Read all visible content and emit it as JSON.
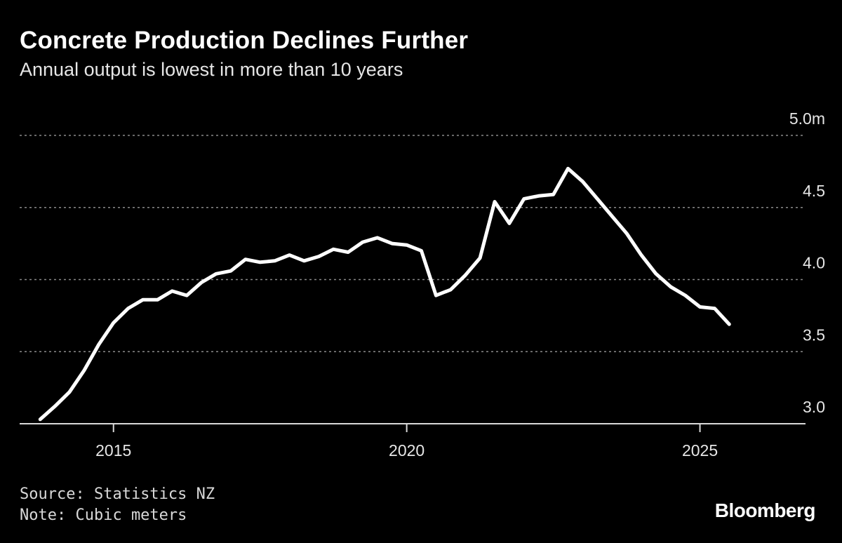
{
  "header": {
    "title": "Concrete Production Declines Further",
    "subtitle": "Annual output is lowest in more than 10 years"
  },
  "footer": {
    "source": "Source: Statistics NZ",
    "note": "Note: Cubic meters",
    "brand": "Bloomberg"
  },
  "colors": {
    "background": "#000000",
    "line": "#ffffff",
    "grid": "#8a8a8a",
    "text": "#ffffff"
  },
  "chart_data": {
    "type": "line",
    "title": "Concrete Production Declines Further",
    "subtitle": "Annual output is lowest in more than 10 years",
    "xlabel": "",
    "ylabel": "",
    "xlim": [
      2013.4,
      2026.8
    ],
    "ylim": [
      3.0,
      5.0
    ],
    "x_ticks": [
      {
        "value": 2015,
        "label": "2015"
      },
      {
        "value": 2020,
        "label": "2020"
      },
      {
        "value": 2025,
        "label": "2025"
      }
    ],
    "y_ticks": [
      {
        "value": 5.0,
        "label": "5.0m"
      },
      {
        "value": 4.5,
        "label": "4.5"
      },
      {
        "value": 4.0,
        "label": "4.0"
      },
      {
        "value": 3.5,
        "label": "3.5"
      },
      {
        "value": 3.0,
        "label": "3.0"
      }
    ],
    "grid": true,
    "y_axis_position": "right",
    "series": [
      {
        "x": [
          2013.75,
          2014.0,
          2014.25,
          2014.5,
          2014.75,
          2015.0,
          2015.25,
          2015.5,
          2015.75,
          2016.0,
          2016.25,
          2016.5,
          2016.75,
          2017.0,
          2017.25,
          2017.5,
          2017.75,
          2018.0,
          2018.25,
          2018.5,
          2018.75,
          2019.0,
          2019.25,
          2019.5,
          2019.75,
          2020.0,
          2020.25,
          2020.5,
          2020.75,
          2021.0,
          2021.25,
          2021.5,
          2021.75,
          2022.0,
          2022.25,
          2022.5,
          2022.75,
          2023.0,
          2023.25,
          2023.5,
          2023.75,
          2024.0,
          2024.25,
          2024.5,
          2024.75,
          2025.0,
          2025.25,
          2025.5
        ],
        "values": [
          3.03,
          3.12,
          3.22,
          3.37,
          3.55,
          3.7,
          3.8,
          3.86,
          3.86,
          3.92,
          3.89,
          3.98,
          4.04,
          4.06,
          4.14,
          4.12,
          4.13,
          4.17,
          4.13,
          4.16,
          4.21,
          4.19,
          4.26,
          4.29,
          4.25,
          4.24,
          4.2,
          3.89,
          3.93,
          4.03,
          4.15,
          4.54,
          4.39,
          4.56,
          4.58,
          4.59,
          4.77,
          4.68,
          4.56,
          4.44,
          4.32,
          4.17,
          4.04,
          3.95,
          3.89,
          3.81,
          3.8,
          3.69
        ]
      }
    ]
  }
}
